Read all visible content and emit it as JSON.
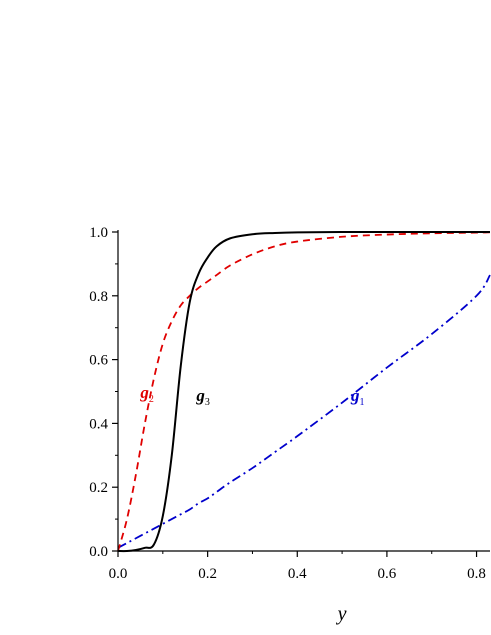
{
  "chart_data": {
    "type": "line",
    "title": "",
    "xlabel": "y",
    "ylabel": "",
    "xlim": [
      0.0,
      0.83
    ],
    "ylim": [
      0.0,
      1.0
    ],
    "grid": false,
    "x_ticks": [
      "0.0",
      "0.2",
      "0.4",
      "0.6",
      "0.8"
    ],
    "y_ticks": [
      "0.0",
      "0.2",
      "0.4",
      "0.6",
      "0.8",
      "1.0"
    ],
    "x_tick_values": [
      0.0,
      0.2,
      0.4,
      0.6,
      0.8
    ],
    "y_tick_values": [
      0.0,
      0.2,
      0.4,
      0.6,
      0.8,
      1.0
    ],
    "x": [
      0.0,
      0.02,
      0.04,
      0.06,
      0.08,
      0.1,
      0.12,
      0.14,
      0.16,
      0.18,
      0.2,
      0.22,
      0.25,
      0.3,
      0.35,
      0.4,
      0.5,
      0.6,
      0.7,
      0.8,
      0.83
    ],
    "series": [
      {
        "name": "g",
        "subscript": "1",
        "color": "#0000cc",
        "style": "dashdot",
        "label_at": [
          0.52,
          0.47
        ],
        "values": [
          0.01,
          0.025,
          0.04,
          0.055,
          0.07,
          0.085,
          0.1,
          0.115,
          0.13,
          0.15,
          0.165,
          0.185,
          0.215,
          0.26,
          0.31,
          0.36,
          0.465,
          0.575,
          0.68,
          0.8,
          0.865
        ]
      },
      {
        "name": "g",
        "subscript": "2",
        "color": "#e00000",
        "style": "dashed",
        "label_at": [
          0.05,
          0.48
        ],
        "values": [
          0.0,
          0.1,
          0.24,
          0.4,
          0.54,
          0.65,
          0.72,
          0.77,
          0.8,
          0.825,
          0.845,
          0.865,
          0.895,
          0.93,
          0.955,
          0.97,
          0.985,
          0.992,
          0.996,
          0.998,
          0.999
        ]
      },
      {
        "name": "g",
        "subscript": "3",
        "color": "#000000",
        "style": "solid",
        "label_at": [
          0.175,
          0.47
        ],
        "values": [
          0.0,
          0.0,
          0.003,
          0.01,
          0.02,
          0.11,
          0.3,
          0.58,
          0.78,
          0.87,
          0.92,
          0.955,
          0.98,
          0.993,
          0.997,
          0.999,
          1.0,
          1.0,
          1.0,
          1.0,
          1.0
        ]
      }
    ]
  }
}
